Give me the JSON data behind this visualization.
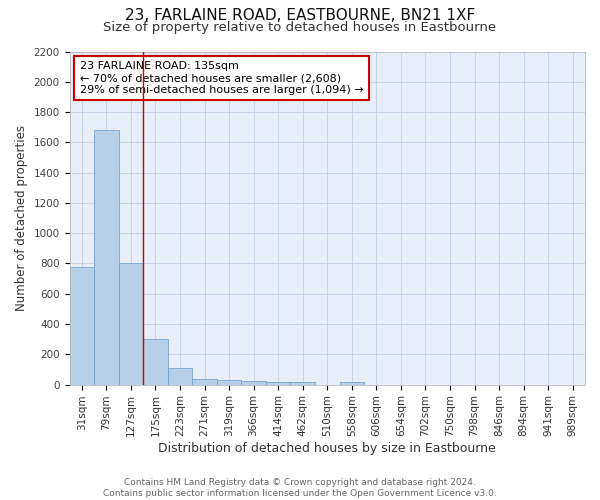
{
  "title": "23, FARLAINE ROAD, EASTBOURNE, BN21 1XF",
  "subtitle": "Size of property relative to detached houses in Eastbourne",
  "xlabel": "Distribution of detached houses by size in Eastbourne",
  "ylabel": "Number of detached properties",
  "categories": [
    "31sqm",
    "79sqm",
    "127sqm",
    "175sqm",
    "223sqm",
    "271sqm",
    "319sqm",
    "366sqm",
    "414sqm",
    "462sqm",
    "510sqm",
    "558sqm",
    "606sqm",
    "654sqm",
    "702sqm",
    "750sqm",
    "798sqm",
    "846sqm",
    "894sqm",
    "941sqm",
    "989sqm"
  ],
  "values": [
    775,
    1680,
    800,
    300,
    110,
    40,
    30,
    25,
    20,
    20,
    0,
    20,
    0,
    0,
    0,
    0,
    0,
    0,
    0,
    0,
    0
  ],
  "bar_color": "#b8cfe8",
  "bar_edge_color": "#6699cc",
  "vline_x": 2.5,
  "vline_color": "#cc0000",
  "annotation_text": "23 FARLAINE ROAD: 135sqm\n← 70% of detached houses are smaller (2,608)\n29% of semi-detached houses are larger (1,094) →",
  "annotation_box_color": "#ffffff",
  "annotation_box_edge_color": "#cc0000",
  "ylim": [
    0,
    2200
  ],
  "yticks": [
    0,
    200,
    400,
    600,
    800,
    1000,
    1200,
    1400,
    1600,
    1800,
    2000,
    2200
  ],
  "grid_color": "#c8d4e8",
  "bg_color": "#e8eef8",
  "footnote": "Contains HM Land Registry data © Crown copyright and database right 2024.\nContains public sector information licensed under the Open Government Licence v3.0.",
  "title_fontsize": 11,
  "subtitle_fontsize": 9.5,
  "xlabel_fontsize": 9,
  "ylabel_fontsize": 8.5,
  "tick_fontsize": 7.5,
  "annotation_fontsize": 8,
  "footnote_fontsize": 6.5
}
